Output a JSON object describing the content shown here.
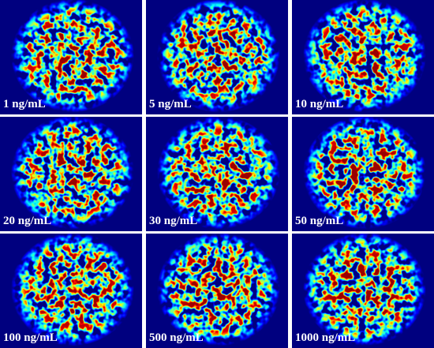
{
  "panels": [
    {
      "label": "1 ng/mL"
    },
    {
      "label": "5 ng/mL"
    },
    {
      "label": "10 ng/mL"
    },
    {
      "label": "20 ng/mL"
    },
    {
      "label": "30 ng/mL"
    },
    {
      "label": "50 ng/mL"
    },
    {
      "label": "100 ng/mL"
    },
    {
      "label": "500 ng/mL"
    },
    {
      "label": "1000 ng/mL"
    }
  ]
}
